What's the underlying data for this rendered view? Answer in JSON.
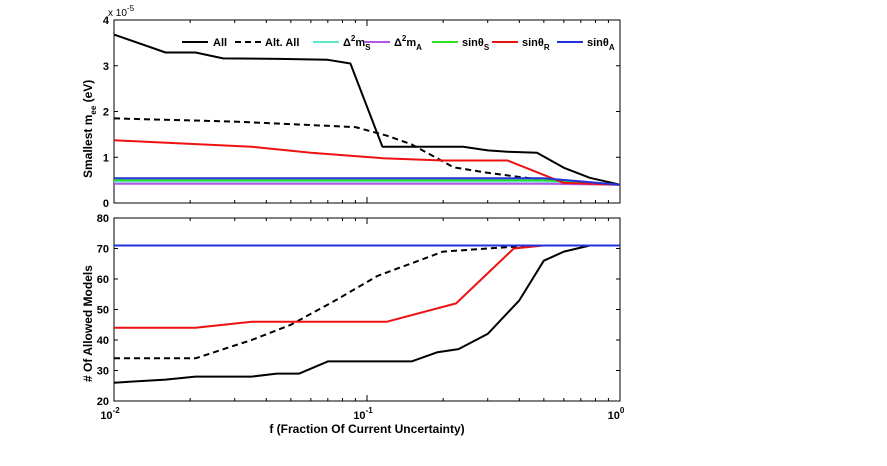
{
  "chart_data": [
    {
      "type": "line",
      "panel": "top",
      "xscale": "log",
      "xlim": [
        0.01,
        1
      ],
      "ylim": [
        0,
        4
      ],
      "yticks": [
        "0",
        "1",
        "2",
        "3",
        "4"
      ],
      "exponent_label": "x 10",
      "exponent_power": "-5",
      "ylabel_prefix": "Smallest m",
      "ylabel_sub": "ee",
      "ylabel_suffix": " (eV)",
      "series": [
        {
          "name": "All",
          "color": "#000000",
          "dash": "",
          "x": [
            0.01,
            0.016,
            0.021,
            0.027,
            0.045,
            0.07,
            0.086,
            0.115,
            0.145,
            0.24,
            0.3,
            0.36,
            0.47,
            0.6,
            0.76,
            1.0
          ],
          "y": [
            3.68,
            3.29,
            3.29,
            3.16,
            3.15,
            3.13,
            3.05,
            1.23,
            1.23,
            1.23,
            1.15,
            1.12,
            1.1,
            0.77,
            0.55,
            0.4
          ]
        },
        {
          "name": "Alt. All",
          "color": "#000000",
          "dash": "6,4",
          "x": [
            0.01,
            0.03,
            0.09,
            0.12,
            0.15,
            0.22,
            0.3,
            0.44,
            0.6,
            1.0
          ],
          "y": [
            1.85,
            1.78,
            1.66,
            1.47,
            1.28,
            0.78,
            0.66,
            0.54,
            0.46,
            0.4
          ]
        },
        {
          "name": "Δ2mS",
          "color": "#5fe6cf",
          "dash": "",
          "x": [
            0.01,
            0.5,
            1.0
          ],
          "y": [
            0.47,
            0.47,
            0.4
          ]
        },
        {
          "name": "Δ2mA",
          "color": "#b455e6",
          "dash": "",
          "x": [
            0.01,
            0.5,
            1.0
          ],
          "y": [
            0.42,
            0.42,
            0.4
          ]
        },
        {
          "name": "sinθS",
          "color": "#33dd22",
          "dash": "",
          "x": [
            0.01,
            0.5,
            1.0
          ],
          "y": [
            0.5,
            0.5,
            0.4
          ]
        },
        {
          "name": "sinθR",
          "color": "#ee1111",
          "dash": "",
          "x": [
            0.01,
            0.035,
            0.06,
            0.115,
            0.2,
            0.36,
            0.6,
            1.0
          ],
          "y": [
            1.37,
            1.23,
            1.1,
            0.98,
            0.93,
            0.93,
            0.44,
            0.4
          ]
        },
        {
          "name": "sinθA",
          "color": "#2233dd",
          "dash": "",
          "x": [
            0.01,
            0.5,
            1.0
          ],
          "y": [
            0.54,
            0.54,
            0.4
          ]
        }
      ]
    },
    {
      "type": "line",
      "panel": "bottom",
      "xscale": "log",
      "xlim": [
        0.01,
        1
      ],
      "ylim": [
        20,
        80
      ],
      "yticks": [
        "20",
        "30",
        "40",
        "50",
        "60",
        "70",
        "80"
      ],
      "ylabel": "# Of Allowed Models",
      "xlabel": "f  (Fraction Of Current Uncertainty)",
      "xtick_base": "10",
      "xtick_powers": [
        "-2",
        "-1",
        "0"
      ],
      "series": [
        {
          "name": "All",
          "color": "#000000",
          "dash": "",
          "x": [
            0.01,
            0.016,
            0.021,
            0.035,
            0.044,
            0.054,
            0.07,
            0.1,
            0.15,
            0.19,
            0.23,
            0.3,
            0.4,
            0.5,
            0.6,
            0.76,
            1.0
          ],
          "y": [
            26,
            27,
            28,
            28,
            29,
            29,
            33,
            33,
            33,
            36,
            37,
            42,
            53,
            66,
            69,
            71,
            71
          ]
        },
        {
          "name": "Alt. All",
          "color": "#000000",
          "dash": "6,4",
          "x": [
            0.01,
            0.021,
            0.035,
            0.05,
            0.075,
            0.11,
            0.2,
            0.3,
            0.45,
            1.0
          ],
          "y": [
            34,
            34,
            40,
            45,
            53,
            61,
            69,
            70,
            71,
            71
          ]
        },
        {
          "name": "sinθR",
          "color": "#ee1111",
          "dash": "",
          "x": [
            0.01,
            0.021,
            0.035,
            0.12,
            0.225,
            0.38,
            0.5,
            1.0
          ],
          "y": [
            44,
            44,
            46,
            46,
            52,
            70,
            71,
            71
          ]
        },
        {
          "name": "Δ2mS",
          "color": "#5fe6cf",
          "dash": "",
          "x": [
            0.01,
            1.0
          ],
          "y": [
            71,
            71
          ]
        },
        {
          "name": "Δ2mA",
          "color": "#b455e6",
          "dash": "",
          "x": [
            0.01,
            1.0
          ],
          "y": [
            71,
            71
          ]
        },
        {
          "name": "sinθS",
          "color": "#33dd22",
          "dash": "",
          "x": [
            0.01,
            1.0
          ],
          "y": [
            71,
            71
          ]
        },
        {
          "name": "sinθA",
          "color": "#2233dd",
          "dash": "",
          "x": [
            0.01,
            1.0
          ],
          "y": [
            71,
            71
          ]
        }
      ]
    }
  ],
  "legend": {
    "position": "top",
    "items": [
      {
        "key": "All",
        "color": "#000000",
        "dash": "",
        "label": "All"
      },
      {
        "key": "AltAll",
        "color": "#000000",
        "dash": "6,4",
        "label": "Alt. All"
      },
      {
        "key": "dmS",
        "color": "#5fe6cf",
        "dash": "",
        "label_main": "Δ",
        "label_sup": "2",
        "label_mid": "m",
        "label_sub": "S"
      },
      {
        "key": "dmA",
        "color": "#b455e6",
        "dash": "",
        "label_main": "Δ",
        "label_sup": "2",
        "label_mid": "m",
        "label_sub": "A"
      },
      {
        "key": "sS",
        "color": "#33dd22",
        "dash": "",
        "label_main": "sinθ",
        "label_sub": "S"
      },
      {
        "key": "sR",
        "color": "#ee1111",
        "dash": "",
        "label_main": "sinθ",
        "label_sub": "R"
      },
      {
        "key": "sA",
        "color": "#2233dd",
        "dash": "",
        "label_main": "sinθ",
        "label_sub": "A"
      }
    ]
  }
}
